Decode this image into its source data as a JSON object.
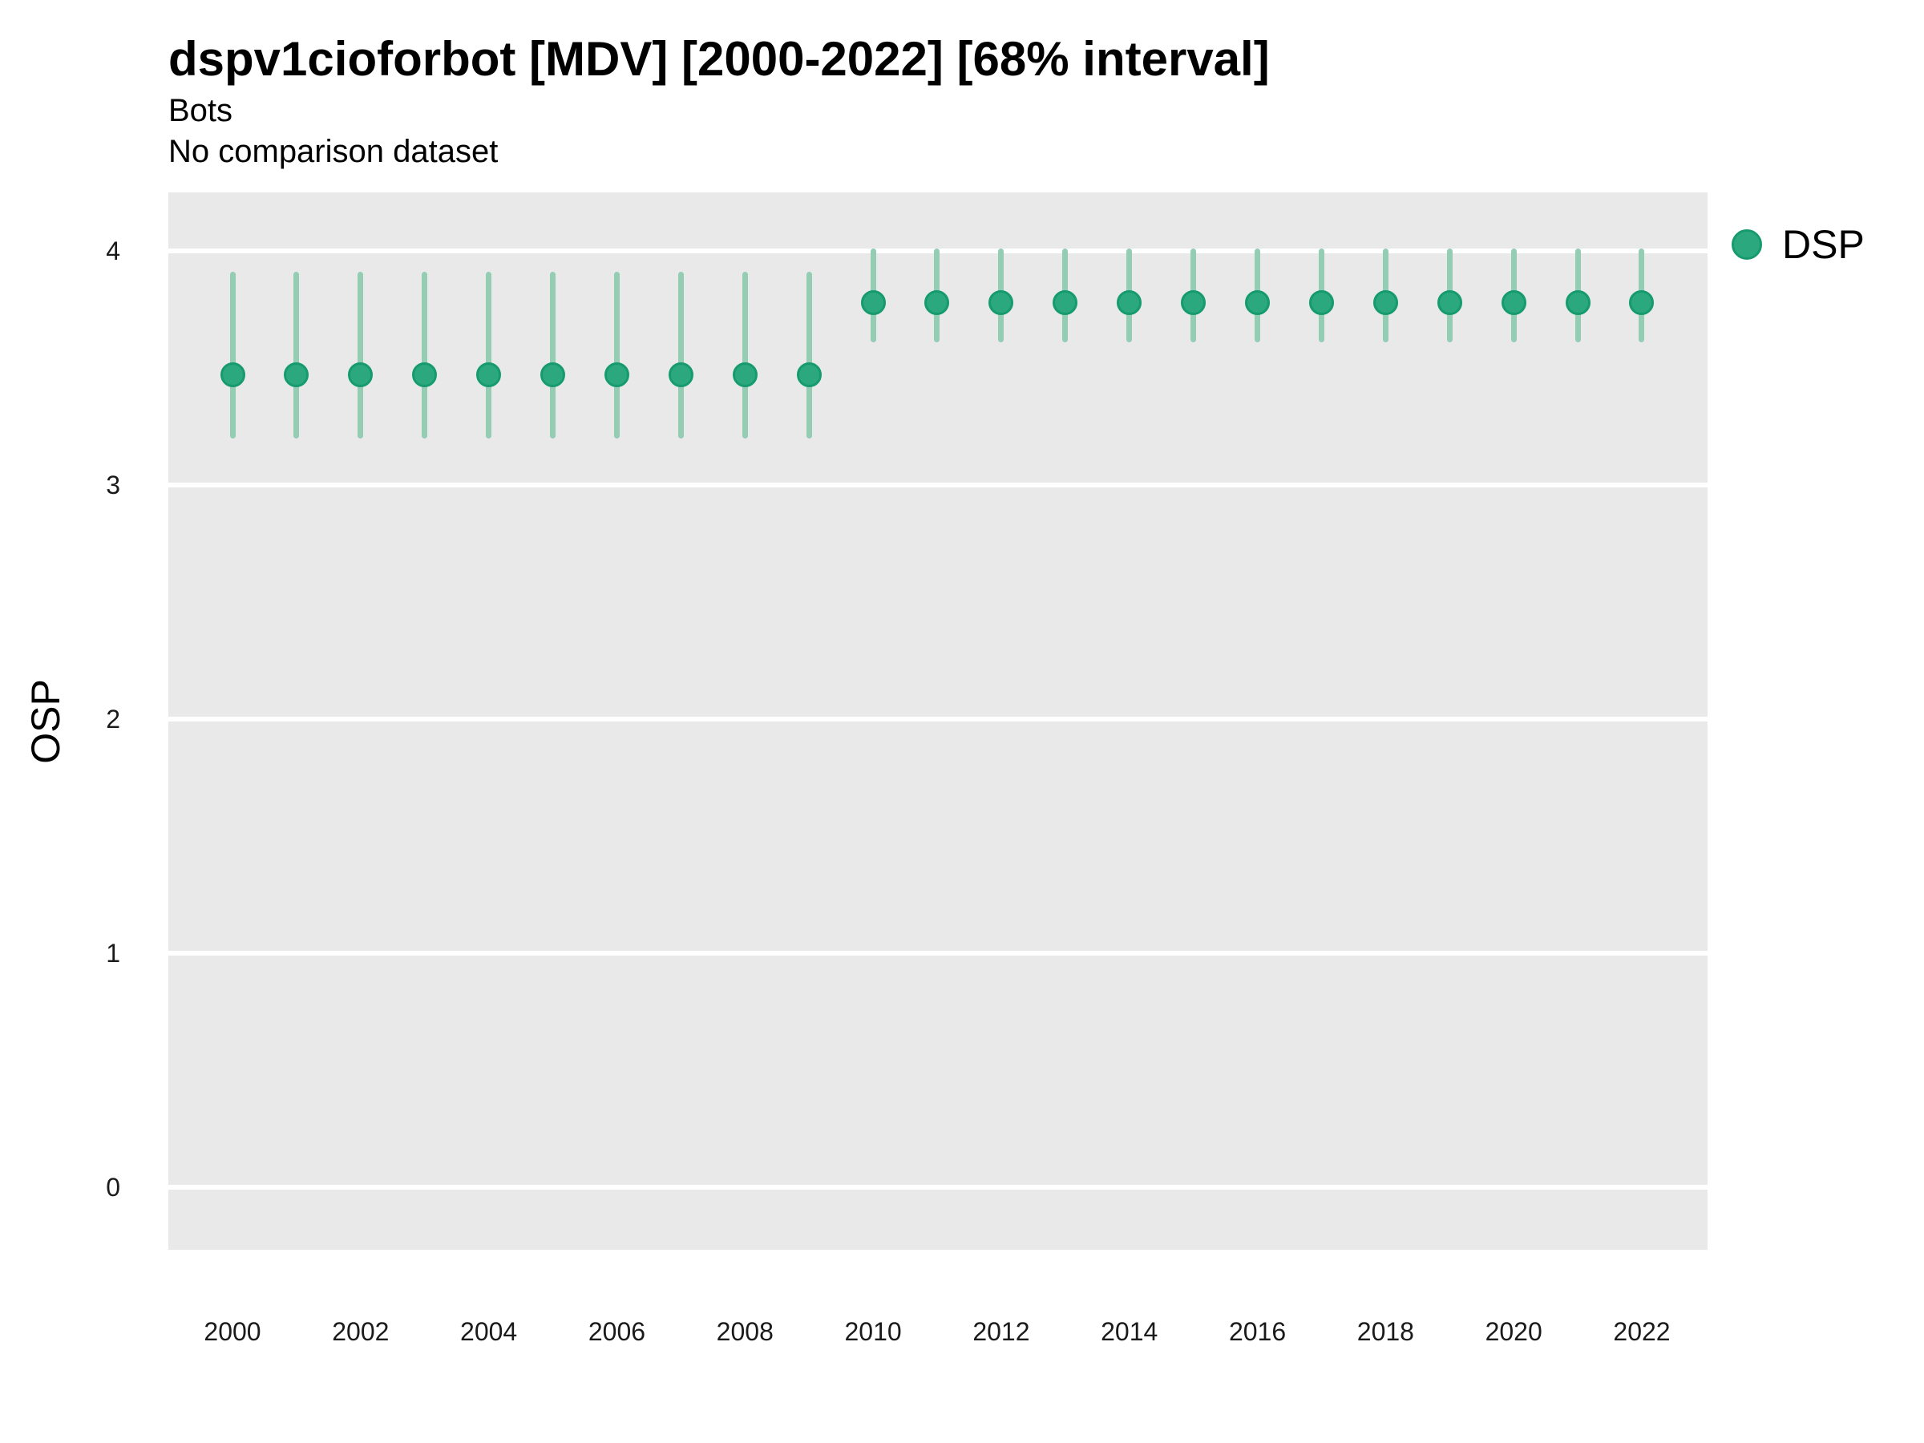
{
  "header": {
    "title": "dspv1cioforbot [MDV] [2000-2022] [68% interval]",
    "subtitle": "Bots",
    "comparison_note": "No comparison dataset"
  },
  "legend": {
    "position": "right",
    "items": [
      {
        "label": "DSP",
        "swatch": "circle"
      }
    ]
  },
  "colors": {
    "point_fill": "#2ba87d",
    "point_stroke": "#179b6e",
    "errorbar": "#92cdb4",
    "panel_bg": "#e9e9e9",
    "gridline": "#ffffff",
    "text": "#000000"
  },
  "chart_data": {
    "type": "scatter",
    "title": "dspv1cioforbot [MDV] [2000-2022] [68% interval]",
    "subtitle": "Bots",
    "note": "No comparison dataset",
    "interval": "68%",
    "xlabel": "",
    "ylabel": "OSP",
    "ylim": [
      -0.27,
      4.25
    ],
    "xlim": [
      1999,
      2023
    ],
    "grid": "major-horizontal-only",
    "legend_position": "right",
    "y_ticks": [
      0,
      1,
      2,
      3,
      4
    ],
    "x_ticks": [
      2000,
      2002,
      2004,
      2006,
      2008,
      2010,
      2012,
      2014,
      2016,
      2018,
      2020,
      2022
    ],
    "series": [
      {
        "name": "DSP",
        "points": [
          {
            "year": 2000,
            "value": 3.47,
            "lo": 3.21,
            "hi": 3.9
          },
          {
            "year": 2001,
            "value": 3.47,
            "lo": 3.21,
            "hi": 3.9
          },
          {
            "year": 2002,
            "value": 3.47,
            "lo": 3.21,
            "hi": 3.9
          },
          {
            "year": 2003,
            "value": 3.47,
            "lo": 3.21,
            "hi": 3.9
          },
          {
            "year": 2004,
            "value": 3.47,
            "lo": 3.21,
            "hi": 3.9
          },
          {
            "year": 2005,
            "value": 3.47,
            "lo": 3.21,
            "hi": 3.9
          },
          {
            "year": 2006,
            "value": 3.47,
            "lo": 3.21,
            "hi": 3.9
          },
          {
            "year": 2007,
            "value": 3.47,
            "lo": 3.21,
            "hi": 3.9
          },
          {
            "year": 2008,
            "value": 3.47,
            "lo": 3.21,
            "hi": 3.9
          },
          {
            "year": 2009,
            "value": 3.47,
            "lo": 3.21,
            "hi": 3.9
          },
          {
            "year": 2010,
            "value": 3.78,
            "lo": 3.62,
            "hi": 4.0
          },
          {
            "year": 2011,
            "value": 3.78,
            "lo": 3.62,
            "hi": 4.0
          },
          {
            "year": 2012,
            "value": 3.78,
            "lo": 3.62,
            "hi": 4.0
          },
          {
            "year": 2013,
            "value": 3.78,
            "lo": 3.62,
            "hi": 4.0
          },
          {
            "year": 2014,
            "value": 3.78,
            "lo": 3.62,
            "hi": 4.0
          },
          {
            "year": 2015,
            "value": 3.78,
            "lo": 3.62,
            "hi": 4.0
          },
          {
            "year": 2016,
            "value": 3.78,
            "lo": 3.62,
            "hi": 4.0
          },
          {
            "year": 2017,
            "value": 3.78,
            "lo": 3.62,
            "hi": 4.0
          },
          {
            "year": 2018,
            "value": 3.78,
            "lo": 3.62,
            "hi": 4.0
          },
          {
            "year": 2019,
            "value": 3.78,
            "lo": 3.62,
            "hi": 4.0
          },
          {
            "year": 2020,
            "value": 3.78,
            "lo": 3.62,
            "hi": 4.0
          },
          {
            "year": 2021,
            "value": 3.78,
            "lo": 3.62,
            "hi": 4.0
          },
          {
            "year": 2022,
            "value": 3.78,
            "lo": 3.62,
            "hi": 4.0
          }
        ]
      }
    ]
  }
}
